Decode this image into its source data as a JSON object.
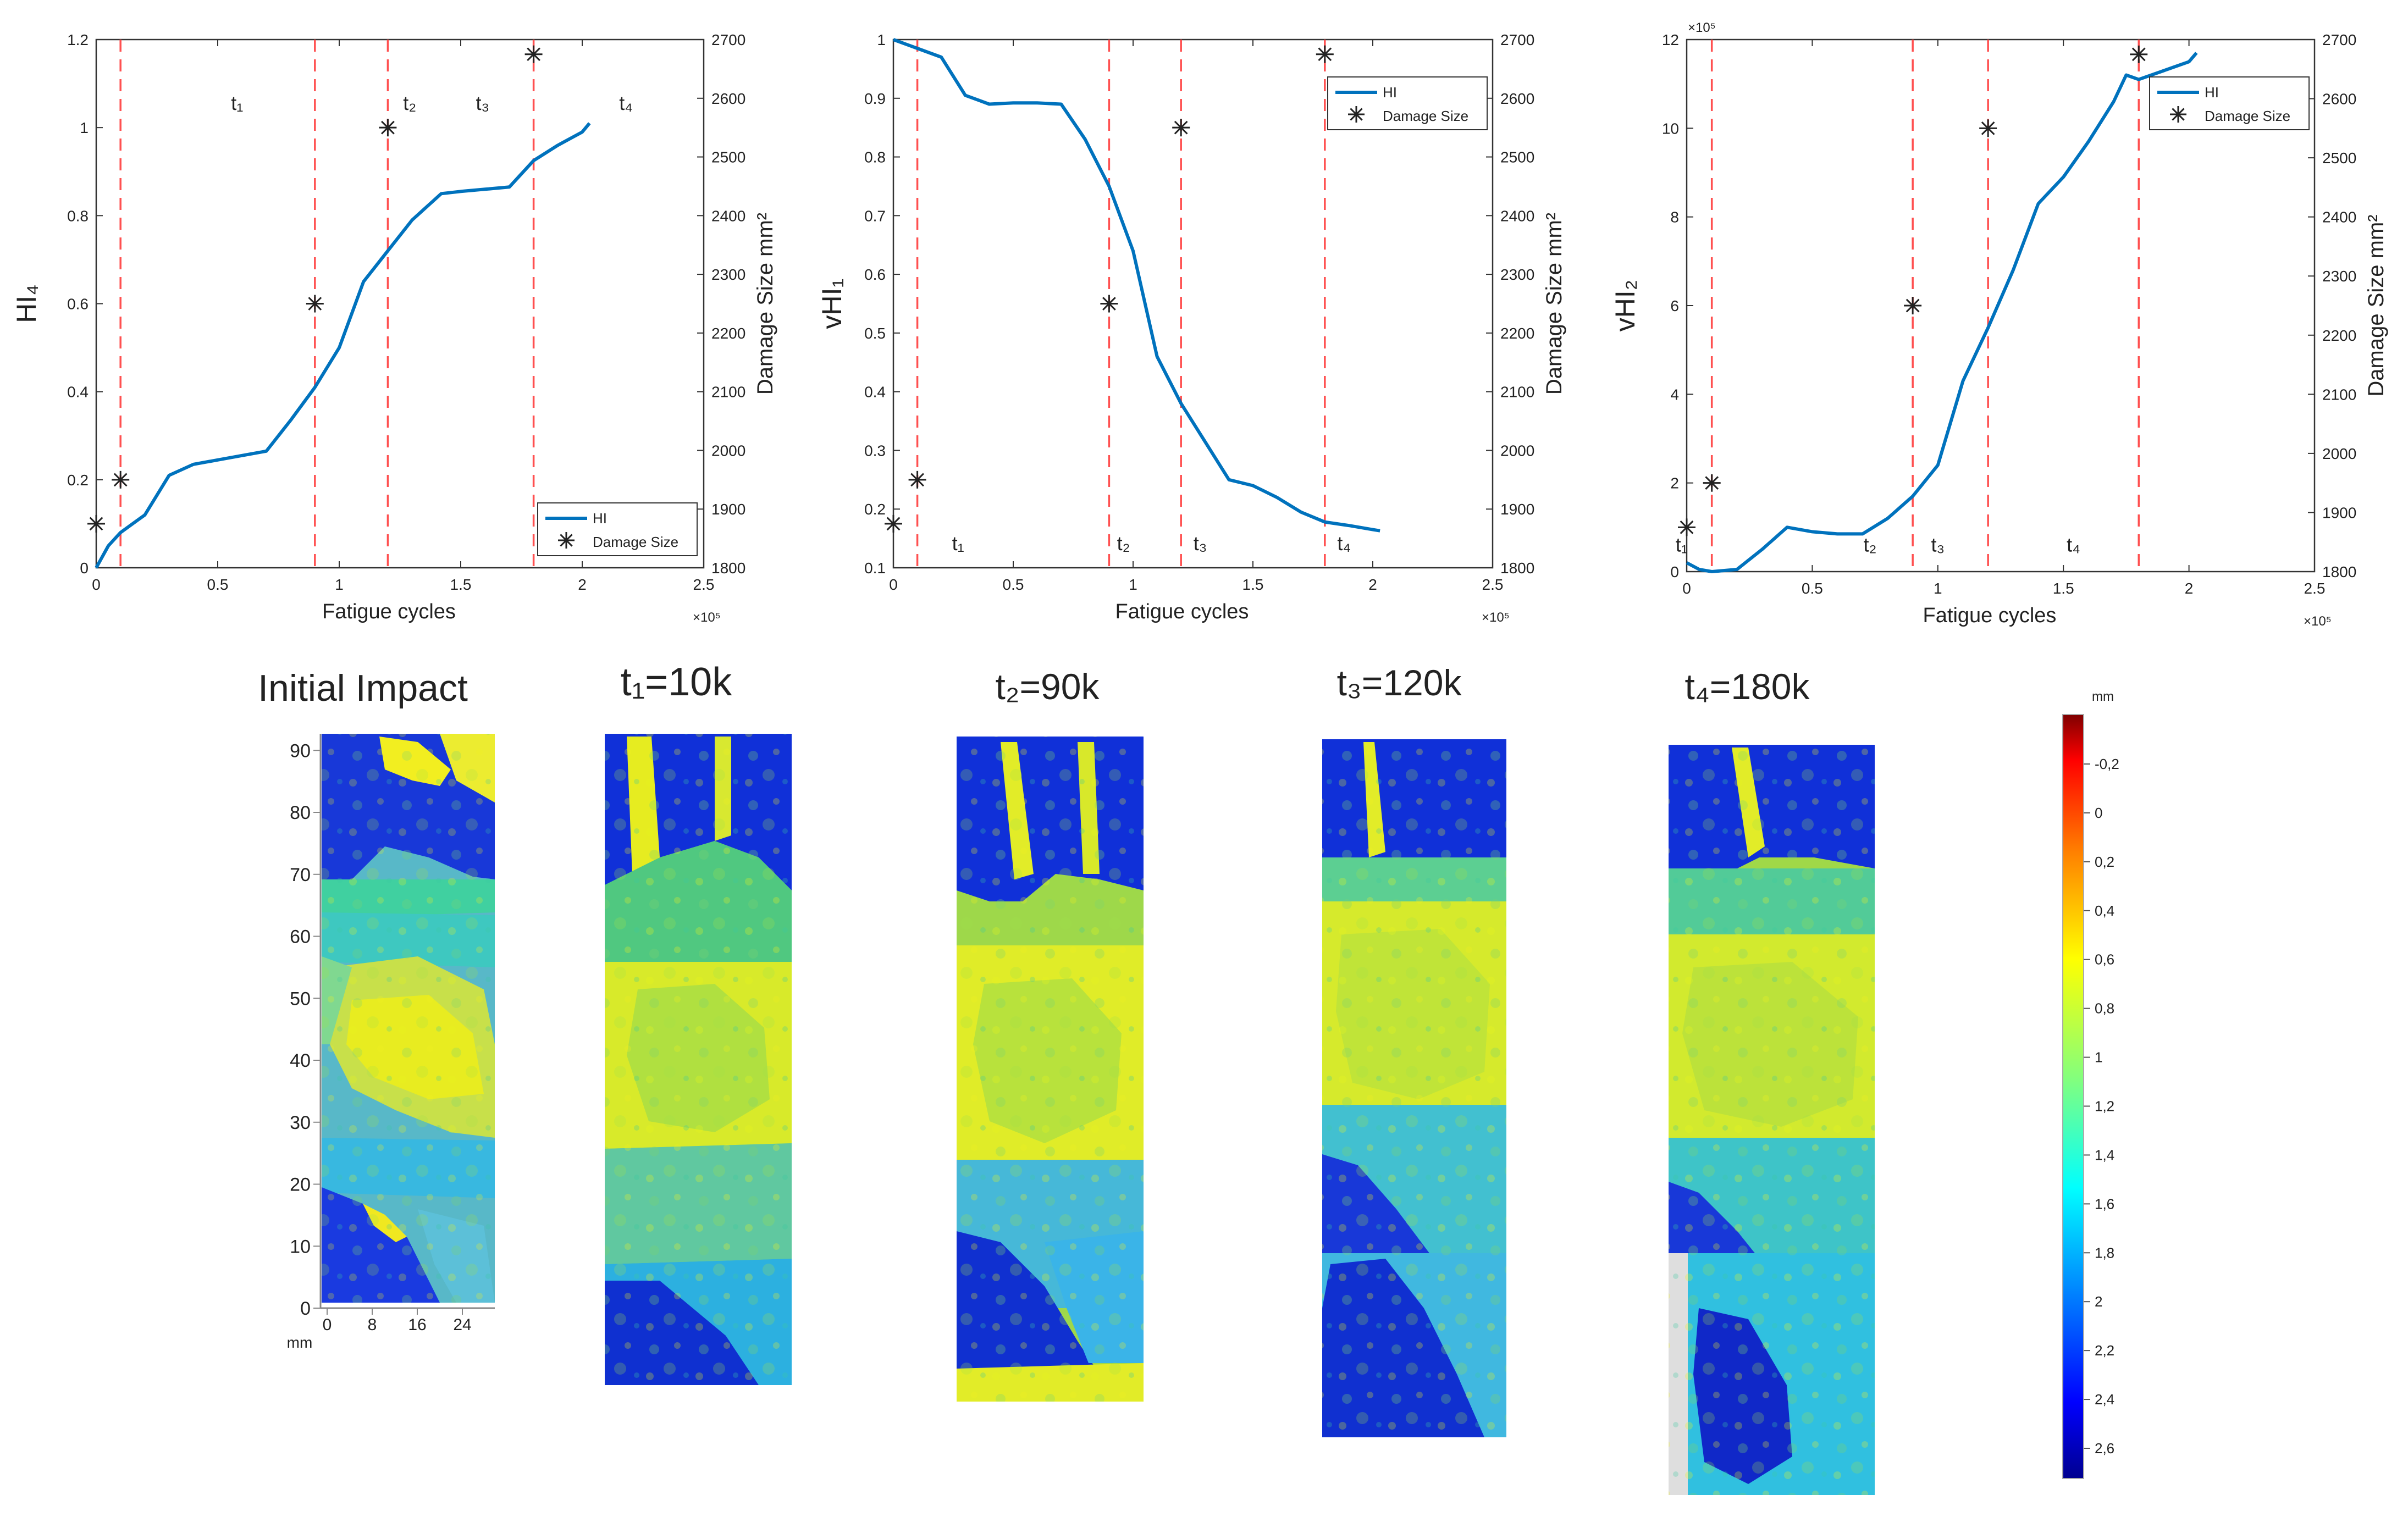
{
  "colors": {
    "line": "#0072BD",
    "marker": "#222222",
    "stage_line": "#FF5050",
    "axis": "#333333"
  },
  "chart_data": [
    {
      "type": "line",
      "ylabel": "HI₄",
      "ylabel2": "Damage Size mm²",
      "xlabel": "Fatigue cycles",
      "x_exponent": "×10⁵",
      "y_exponent": "",
      "xlim": [
        0,
        2.5
      ],
      "xticks": [
        "0",
        "0.5",
        "1",
        "1.5",
        "2",
        "2.5"
      ],
      "ylim": [
        0,
        1.2
      ],
      "yticks": [
        "0",
        "0.2",
        "0.4",
        "0.6",
        "0.8",
        "1",
        "1.2"
      ],
      "y2lim": [
        1800,
        2700
      ],
      "y2ticks": [
        "1800",
        "1900",
        "2000",
        "2100",
        "2200",
        "2300",
        "2400",
        "2500",
        "2600",
        "2700"
      ],
      "series": [
        {
          "name": "HI",
          "kind": "line",
          "x": [
            0,
            0.05,
            0.1,
            0.2,
            0.3,
            0.4,
            0.5,
            0.6,
            0.7,
            0.8,
            0.9,
            1.0,
            1.1,
            1.2,
            1.3,
            1.42,
            1.5,
            1.6,
            1.7,
            1.8,
            1.9,
            2.0,
            2.03
          ],
          "y": [
            0,
            0.05,
            0.08,
            0.12,
            0.21,
            0.235,
            0.245,
            0.255,
            0.265,
            0.335,
            0.41,
            0.5,
            0.65,
            0.72,
            0.79,
            0.85,
            0.855,
            0.86,
            0.865,
            0.925,
            0.96,
            0.99,
            1.01
          ]
        },
        {
          "name": "Damage Size",
          "kind": "marker",
          "x": [
            0,
            0.1,
            0.9,
            1.2,
            1.8
          ],
          "y2": [
            1875,
            1950,
            2250,
            2550,
            2675
          ]
        }
      ],
      "stages": [
        0.1,
        0.9,
        1.2,
        1.8
      ],
      "stage_labels": [
        {
          "text": "t₁",
          "x": 0.58,
          "y": 1.04
        },
        {
          "text": "t₂",
          "x": 1.29,
          "y": 1.04
        },
        {
          "text": "t₃",
          "x": 1.59,
          "y": 1.04
        },
        {
          "text": "t₄",
          "x": 2.18,
          "y": 1.04
        }
      ],
      "legend": [
        "HI",
        "Damage Size"
      ],
      "legend_position": "bottom-right"
    },
    {
      "type": "line",
      "ylabel": "vHI₁",
      "ylabel2": "Damage Size mm²",
      "xlabel": "Fatigue cycles",
      "x_exponent": "×10⁵",
      "y_exponent": "",
      "xlim": [
        0,
        2.5
      ],
      "xticks": [
        "0",
        "0.5",
        "1",
        "1.5",
        "2",
        "2.5"
      ],
      "ylim": [
        0.1,
        1.0
      ],
      "yticks": [
        "0.1",
        "0.2",
        "0.3",
        "0.4",
        "0.5",
        "0.6",
        "0.7",
        "0.8",
        "0.9",
        "1"
      ],
      "y2lim": [
        1800,
        2700
      ],
      "y2ticks": [
        "1800",
        "1900",
        "2000",
        "2100",
        "2200",
        "2300",
        "2400",
        "2500",
        "2600",
        "2700"
      ],
      "series": [
        {
          "name": "HI",
          "kind": "line",
          "x": [
            0,
            0.1,
            0.2,
            0.3,
            0.4,
            0.5,
            0.6,
            0.7,
            0.8,
            0.9,
            1.0,
            1.1,
            1.2,
            1.3,
            1.4,
            1.5,
            1.6,
            1.7,
            1.8,
            1.9,
            2.0,
            2.03
          ],
          "y": [
            1.0,
            0.985,
            0.97,
            0.905,
            0.89,
            0.892,
            0.892,
            0.89,
            0.83,
            0.75,
            0.64,
            0.46,
            0.38,
            0.315,
            0.25,
            0.24,
            0.22,
            0.195,
            0.178,
            0.172,
            0.165,
            0.163
          ]
        },
        {
          "name": "Damage Size",
          "kind": "marker",
          "x": [
            0,
            0.1,
            0.9,
            1.2,
            1.8
          ],
          "y2": [
            1875,
            1950,
            2250,
            2550,
            2675
          ]
        }
      ],
      "stages": [
        0.1,
        0.9,
        1.2,
        1.8
      ],
      "stage_labels": [
        {
          "text": "t₁",
          "x": 0.27,
          "y": 0.13
        },
        {
          "text": "t₂",
          "x": 0.96,
          "y": 0.13
        },
        {
          "text": "t₃",
          "x": 1.28,
          "y": 0.13
        },
        {
          "text": "t₄",
          "x": 1.88,
          "y": 0.13
        }
      ],
      "legend": [
        "HI",
        "Damage Size"
      ],
      "legend_position": "top-right"
    },
    {
      "type": "line",
      "ylabel": "vHI₂",
      "ylabel2": "Damage Size mm²",
      "xlabel": "Fatigue cycles",
      "x_exponent": "×10⁵",
      "y_exponent": "×10⁵",
      "xlim": [
        0,
        2.5
      ],
      "xticks": [
        "0",
        "0.5",
        "1",
        "1.5",
        "2",
        "2.5"
      ],
      "ylim": [
        0,
        12
      ],
      "yticks": [
        "0",
        "2",
        "4",
        "6",
        "8",
        "10",
        "12"
      ],
      "y2lim": [
        1800,
        2700
      ],
      "y2ticks": [
        "1800",
        "1900",
        "2000",
        "2100",
        "2200",
        "2300",
        "2400",
        "2500",
        "2600",
        "2700"
      ],
      "series": [
        {
          "name": "HI",
          "kind": "line",
          "x": [
            0,
            0.05,
            0.1,
            0.2,
            0.3,
            0.4,
            0.5,
            0.6,
            0.7,
            0.8,
            0.9,
            1.0,
            1.1,
            1.2,
            1.3,
            1.4,
            1.5,
            1.6,
            1.7,
            1.75,
            1.8,
            1.9,
            2.0,
            2.03
          ],
          "y": [
            0.2,
            0.05,
            0.0,
            0.05,
            0.5,
            1.0,
            0.9,
            0.85,
            0.85,
            1.2,
            1.7,
            2.4,
            4.3,
            5.5,
            6.8,
            8.3,
            8.9,
            9.7,
            10.6,
            11.2,
            11.1,
            11.3,
            11.5,
            11.7
          ]
        },
        {
          "name": "Damage Size",
          "kind": "marker",
          "x": [
            0,
            0.1,
            0.9,
            1.2,
            1.8
          ],
          "y2": [
            1875,
            1950,
            2250,
            2550,
            2675
          ]
        }
      ],
      "stages": [
        0.1,
        0.9,
        1.2,
        1.8
      ],
      "stage_labels": [
        {
          "text": "t₁",
          "x": -0.02,
          "y": 0.45
        },
        {
          "text": "t₂",
          "x": 0.73,
          "y": 0.45
        },
        {
          "text": "t₃",
          "x": 1.0,
          "y": 0.45
        },
        {
          "text": "t₄",
          "x": 1.54,
          "y": 0.45
        }
      ],
      "legend": [
        "HI",
        "Damage Size"
      ],
      "legend_position": "top-right"
    }
  ],
  "panels": {
    "titles": [
      "Initial Impact",
      "t₁=10k",
      "t₂=90k",
      "t₃=120k",
      "t₄=180k"
    ],
    "y_ticks": [
      "0",
      "10",
      "20",
      "30",
      "40",
      "50",
      "60",
      "70",
      "80",
      "90"
    ],
    "x_ticks": [
      "0",
      "8",
      "16",
      "24"
    ],
    "unit": "mm"
  },
  "colorbar": {
    "unit": "mm",
    "ticks": [
      "-0,2",
      "0",
      "0,2",
      "0,4",
      "0,6",
      "0,8",
      "1",
      "1,2",
      "1,4",
      "1,6",
      "1,8",
      "2",
      "2,2",
      "2,4",
      "2,6"
    ],
    "stops": [
      "#7f0000",
      "#ff0000",
      "#ff8000",
      "#ffff00",
      "#80ff80",
      "#00ffff",
      "#0080ff",
      "#0000ff",
      "#00008f"
    ]
  }
}
